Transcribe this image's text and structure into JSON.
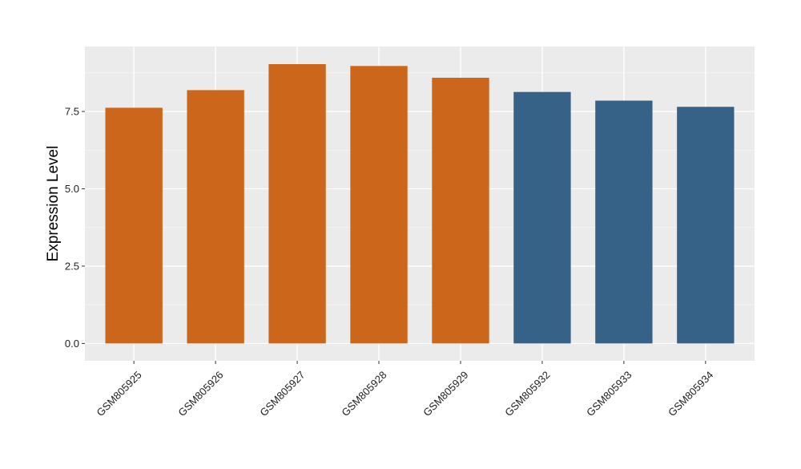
{
  "chart_data": {
    "type": "bar",
    "categories": [
      "GSM805925",
      "GSM805926",
      "GSM805927",
      "GSM805928",
      "GSM805929",
      "GSM805932",
      "GSM805933",
      "GSM805934"
    ],
    "values": [
      7.62,
      8.19,
      9.03,
      8.97,
      8.59,
      8.13,
      7.85,
      7.65
    ],
    "group": [
      "A",
      "A",
      "A",
      "A",
      "A",
      "B",
      "B",
      "B"
    ],
    "colors": {
      "A": "#CC661A",
      "B": "#366288"
    },
    "ylabel": "Expression Level",
    "xlabel": "",
    "ylim": [
      -0.56,
      9.6
    ],
    "yticks": [
      0.0,
      2.5,
      5.0,
      7.5
    ],
    "ytick_labels": [
      "0.0",
      "2.5",
      "5.0",
      "7.5"
    ],
    "grid": true,
    "panel_background": "#EBEBEB",
    "legend": "none"
  }
}
